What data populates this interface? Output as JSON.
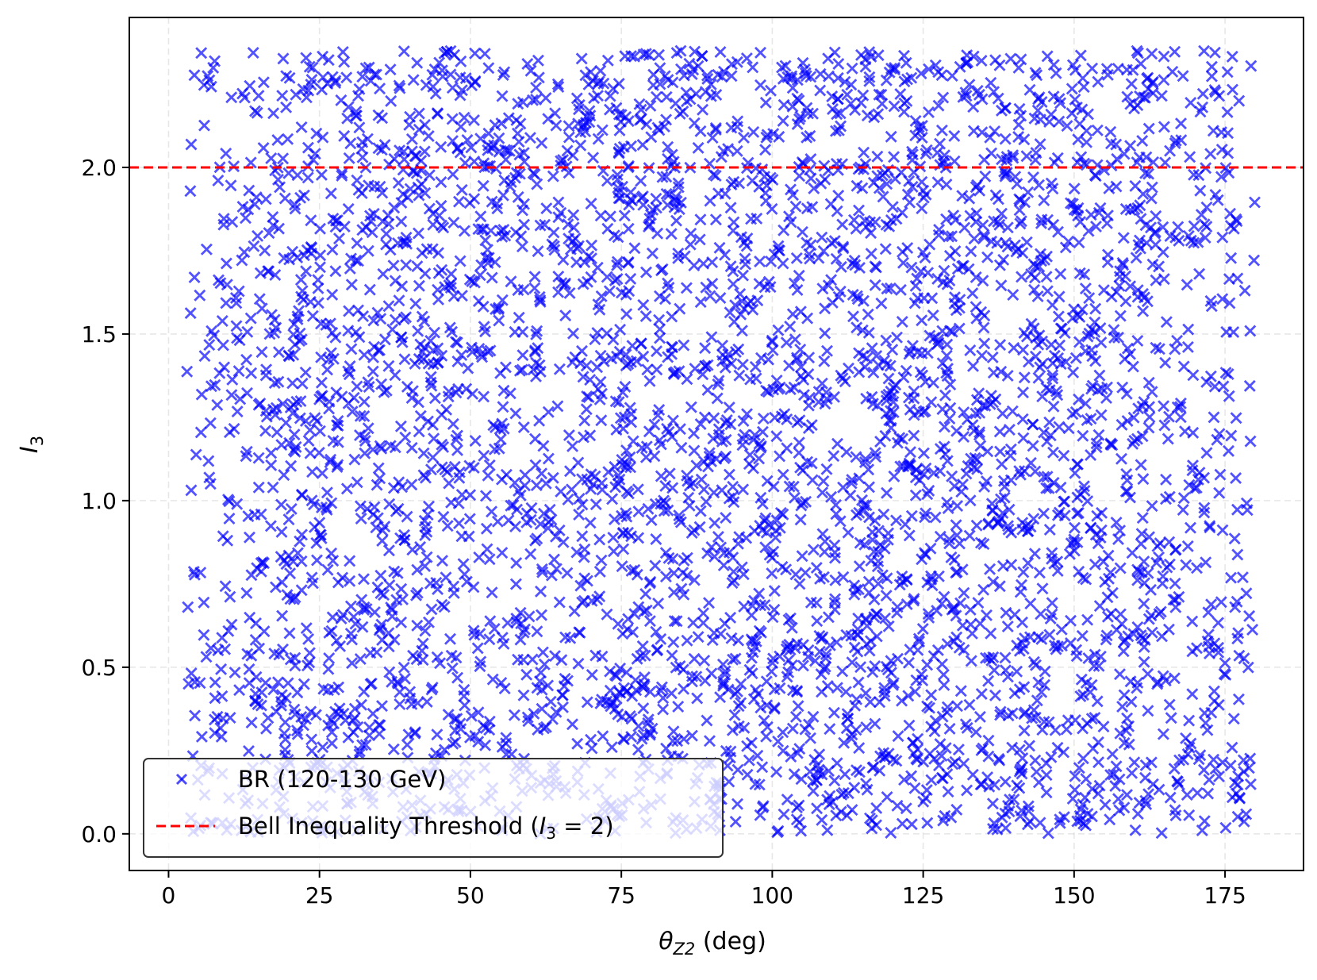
{
  "chart_data": {
    "type": "scatter",
    "title": "",
    "xlabel": {
      "main": "θ",
      "sub": "Z2",
      "rest": " (deg)"
    },
    "ylabel": {
      "main": "I",
      "sub": "3"
    },
    "xlim": [
      -6.5,
      188
    ],
    "ylim": [
      -0.11,
      2.45
    ],
    "xticks": [
      0,
      25,
      50,
      75,
      100,
      125,
      150,
      175
    ],
    "xtick_labels": [
      "0",
      "25",
      "50",
      "75",
      "100",
      "125",
      "150",
      "175"
    ],
    "yticks": [
      0.0,
      0.5,
      1.0,
      1.5,
      2.0
    ],
    "ytick_labels": [
      "0.0",
      "0.5",
      "1.0",
      "1.5",
      "2.0"
    ],
    "grid": true,
    "legend_position": "lower-left",
    "threshold": {
      "y": 2.0,
      "color": "#ff0000",
      "style": "dashed"
    },
    "series": [
      {
        "name": "BR (120-130 GeV)",
        "marker": "x",
        "color": "#0000ff",
        "point_count": 4200,
        "x_range": [
          3,
          180
        ],
        "y_range": [
          0.0,
          2.35
        ]
      }
    ],
    "legend": [
      {
        "label": "BR (120-130 GeV)",
        "kind": "marker"
      },
      {
        "label_prefix": "Bell Inequality Threshold (",
        "label_math": "I",
        "label_sub": "3",
        "label_suffix": " = 2)",
        "kind": "dashed-line"
      }
    ]
  }
}
